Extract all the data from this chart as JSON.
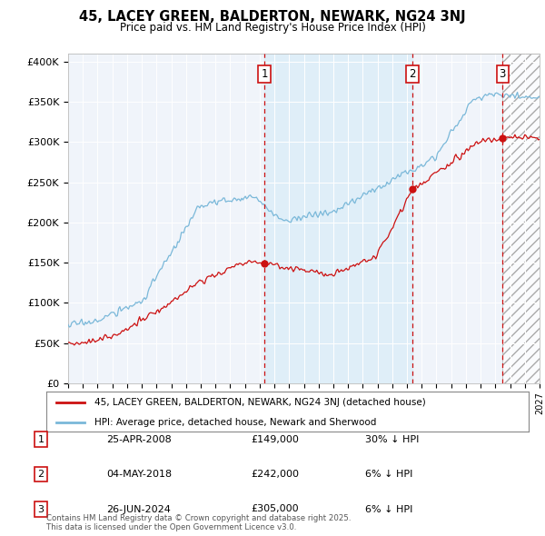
{
  "title": "45, LACEY GREEN, BALDERTON, NEWARK, NG24 3NJ",
  "subtitle": "Price paid vs. HM Land Registry's House Price Index (HPI)",
  "ylabel_ticks": [
    "£0",
    "£50K",
    "£100K",
    "£150K",
    "£200K",
    "£250K",
    "£300K",
    "£350K",
    "£400K"
  ],
  "ytick_values": [
    0,
    50000,
    100000,
    150000,
    200000,
    250000,
    300000,
    350000,
    400000
  ],
  "ylim": [
    0,
    410000
  ],
  "xlim_start": 1995.0,
  "xlim_end": 2027.0,
  "hpi_color": "#7ab8d9",
  "price_color": "#cc1111",
  "vline_color": "#cc1111",
  "shade_color": "#ddeef8",
  "transactions": [
    {
      "num": 1,
      "date": "25-APR-2008",
      "price": 149000,
      "hpi_rel": "30% ↓ HPI",
      "year": 2008.32
    },
    {
      "num": 2,
      "date": "04-MAY-2018",
      "price": 242000,
      "hpi_rel": "6% ↓ HPI",
      "year": 2018.37
    },
    {
      "num": 3,
      "date": "26-JUN-2024",
      "price": 305000,
      "hpi_rel": "6% ↓ HPI",
      "year": 2024.49
    }
  ],
  "legend_label_red": "45, LACEY GREEN, BALDERTON, NEWARK, NG24 3NJ (detached house)",
  "legend_label_blue": "HPI: Average price, detached house, Newark and Sherwood",
  "footnote": "Contains HM Land Registry data © Crown copyright and database right 2025.\nThis data is licensed under the Open Government Licence v3.0.",
  "plot_bg_color": "#f0f4fa"
}
